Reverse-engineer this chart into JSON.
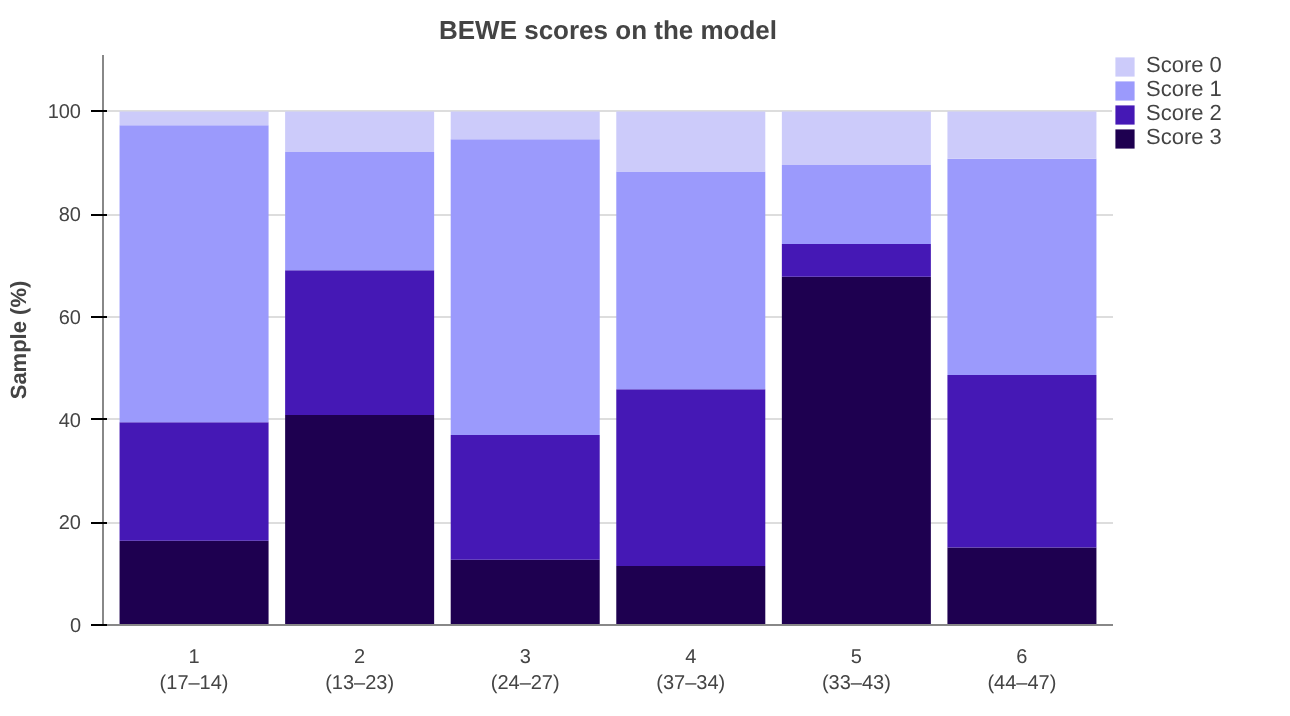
{
  "chart_data": {
    "type": "bar",
    "stacked": true,
    "title": "BEWE scores on the model",
    "ylabel": "Sample (%)",
    "categories": [
      "1\n(17–14)",
      "2\n(13–23)",
      "3\n(24–27)",
      "4\n(37–34)",
      "5\n(33–43)",
      "6\n(44–47)"
    ],
    "series": [
      {
        "name": "Score 3",
        "color": "#1e0050",
        "values": [
          16.4,
          40.9,
          12.7,
          11.5,
          67.8,
          15.1
        ]
      },
      {
        "name": "Score 2",
        "color": "#4518b5",
        "values": [
          23.1,
          28.2,
          24.3,
          34.4,
          6.4,
          33.6
        ]
      },
      {
        "name": "Score 1",
        "color": "#9b9afc",
        "values": [
          57.8,
          23.0,
          57.6,
          42.4,
          15.4,
          42.1
        ]
      },
      {
        "name": "Score 0",
        "color": "#cccbfa",
        "values": [
          2.7,
          7.9,
          5.4,
          11.7,
          10.4,
          9.2
        ]
      }
    ],
    "ylim": [
      0,
      111
    ],
    "yticks": [
      0,
      20,
      40,
      60,
      80,
      100
    ],
    "grid": "y",
    "legend": "top right"
  }
}
